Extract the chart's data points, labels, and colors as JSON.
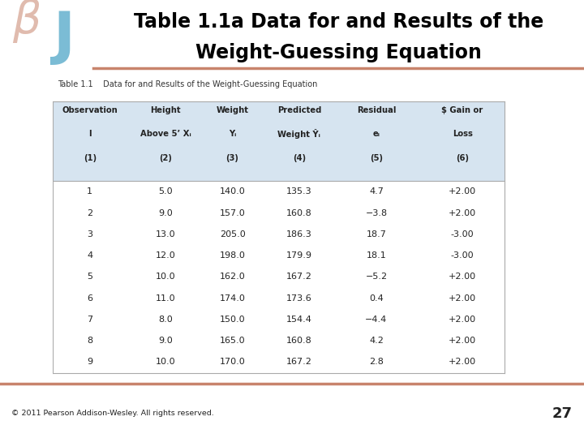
{
  "title_line1": "Table 1.1a Data for and Results of the",
  "title_line2": "Weight-Guessing Equation",
  "table_title": "Table 1.1    Data for and Results of the Weight-Guessing Equation",
  "col_headers": [
    [
      "Observation",
      "I",
      "(1)"
    ],
    [
      "Height",
      "Above 5’ Xᵢ",
      "(2)"
    ],
    [
      "Weight",
      "Yᵢ",
      "(3)"
    ],
    [
      "Predicted",
      "Weight Ŷᵢ",
      "(4)"
    ],
    [
      "Residual",
      "eᵢ",
      "(5)"
    ],
    [
      "$ Gain or",
      "Loss",
      "(6)"
    ]
  ],
  "data": [
    [
      1,
      5.0,
      140.0,
      135.3,
      4.7,
      "+2.00"
    ],
    [
      2,
      9.0,
      157.0,
      160.8,
      -3.8,
      "+2.00"
    ],
    [
      3,
      13.0,
      205.0,
      186.3,
      18.7,
      "-3.00"
    ],
    [
      4,
      12.0,
      198.0,
      179.9,
      18.1,
      "-3.00"
    ],
    [
      5,
      10.0,
      162.0,
      167.2,
      -5.2,
      "+2.00"
    ],
    [
      6,
      11.0,
      174.0,
      173.6,
      0.4,
      "+2.00"
    ],
    [
      7,
      8.0,
      150.0,
      154.4,
      -4.4,
      "+2.00"
    ],
    [
      8,
      9.0,
      165.0,
      160.8,
      4.2,
      "+2.00"
    ],
    [
      9,
      10.0,
      170.0,
      167.2,
      2.8,
      "+2.00"
    ]
  ],
  "bg_color": "#ffffff",
  "header_bg": "#d6e4f0",
  "divider_color": "#c8846c",
  "footer_text": "© 2011 Pearson Addison-Wesley. All rights reserved.",
  "page_num": "27",
  "title_color": "#000000",
  "logo_beta_color": "#c8846c",
  "logo_j_color": "#7bbcd5",
  "table_border_color": "#aaaaaa"
}
